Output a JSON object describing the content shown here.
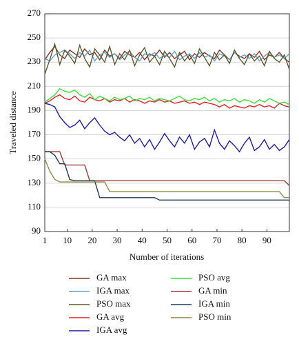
{
  "chart_data": {
    "type": "line",
    "x_label": "Number of iterations",
    "y_label": "Traveled distance",
    "x": [
      1,
      3,
      5,
      7,
      9,
      11,
      13,
      15,
      17,
      19,
      21,
      23,
      25,
      27,
      29,
      31,
      33,
      35,
      37,
      39,
      41,
      43,
      45,
      47,
      49,
      51,
      53,
      55,
      57,
      59,
      61,
      63,
      65,
      67,
      69,
      71,
      73,
      75,
      77,
      79,
      81,
      83,
      85,
      87,
      89,
      91,
      93,
      95,
      97,
      99
    ],
    "xlim": [
      1,
      99
    ],
    "xticks": [
      1,
      10,
      20,
      30,
      40,
      50,
      60,
      70,
      80,
      90
    ],
    "ylim": [
      90,
      270
    ],
    "yticks": [
      90,
      110,
      130,
      150,
      170,
      190,
      210,
      230,
      250,
      270
    ],
    "grid": true,
    "series": [
      {
        "name": "GA max",
        "color": "#8b2f1f",
        "values": [
          232,
          238,
          243,
          236,
          233,
          240,
          237,
          234,
          241,
          236,
          238,
          232,
          240,
          235,
          237,
          233,
          239,
          236,
          234,
          238,
          232,
          237,
          235,
          240,
          234,
          238,
          233,
          236,
          239,
          232,
          237,
          234,
          238,
          235,
          233,
          240,
          236,
          232,
          238,
          235,
          233,
          237,
          234,
          239,
          232,
          236,
          234,
          238,
          233,
          230
        ]
      },
      {
        "name": "IGA max",
        "color": "#5ea3cc",
        "values": [
          233,
          231,
          236,
          238,
          240,
          237,
          233,
          238,
          235,
          240,
          231,
          236,
          238,
          234,
          237,
          232,
          236,
          239,
          234,
          231,
          237,
          235,
          238,
          233,
          236,
          234,
          239,
          232,
          235,
          237,
          233,
          238,
          234,
          236,
          231,
          237,
          235,
          232,
          238,
          234,
          236,
          233,
          237,
          231,
          235,
          238,
          234,
          236,
          233,
          237
        ]
      },
      {
        "name": "PSO max",
        "color": "#5c5a2c",
        "values": [
          220,
          232,
          245,
          228,
          240,
          235,
          229,
          244,
          233,
          226,
          241,
          236,
          230,
          243,
          228,
          237,
          232,
          240,
          227,
          236,
          242,
          230,
          235,
          228,
          239,
          233,
          226,
          238,
          231,
          236,
          229,
          241,
          234,
          227,
          238,
          232,
          236,
          229,
          240,
          233,
          228,
          237,
          231,
          235,
          227,
          239,
          233,
          230,
          236,
          224
        ]
      },
      {
        "name": "GA avg",
        "color": "#e02424",
        "values": [
          196,
          198,
          201,
          203,
          200,
          199,
          202,
          198,
          197,
          201,
          199,
          198,
          200,
          197,
          199,
          198,
          200,
          197,
          199,
          198,
          196,
          198,
          197,
          199,
          197,
          198,
          196,
          197,
          198,
          196,
          197,
          195,
          197,
          196,
          195,
          193,
          195,
          192,
          194,
          193,
          192,
          194,
          193,
          195,
          193,
          194,
          192,
          196,
          194,
          193
        ]
      },
      {
        "name": "IGA avg",
        "color": "#1c1ca8",
        "values": [
          196,
          195,
          193,
          185,
          180,
          176,
          178,
          182,
          175,
          180,
          184,
          178,
          173,
          170,
          172,
          168,
          165,
          170,
          163,
          167,
          160,
          166,
          158,
          164,
          171,
          165,
          160,
          168,
          163,
          170,
          158,
          164,
          167,
          160,
          174,
          163,
          158,
          165,
          161,
          156,
          163,
          168,
          157,
          160,
          166,
          158,
          162,
          157,
          160,
          166
        ]
      },
      {
        "name": "PSO avg",
        "color": "#3ade3a",
        "values": [
          197,
          200,
          203,
          208,
          206,
          205,
          207,
          203,
          201,
          204,
          199,
          202,
          200,
          198,
          201,
          199,
          200,
          202,
          198,
          200,
          199,
          201,
          198,
          200,
          199,
          198,
          200,
          202,
          199,
          198,
          200,
          199,
          201,
          198,
          200,
          197,
          199,
          198,
          200,
          197,
          199,
          198,
          196,
          199,
          197,
          200,
          198,
          196,
          197,
          195
        ]
      },
      {
        "name": "GA min",
        "color": "#a3383a",
        "values": [
          156,
          156,
          156,
          156,
          145,
          145,
          145,
          145,
          145,
          132,
          132,
          132,
          132,
          132,
          132,
          132,
          132,
          132,
          132,
          132,
          132,
          132,
          132,
          132,
          132,
          132,
          132,
          132,
          132,
          132,
          132,
          132,
          132,
          132,
          132,
          132,
          132,
          132,
          132,
          132,
          132,
          132,
          132,
          132,
          132,
          132,
          132,
          132,
          132,
          128
        ]
      },
      {
        "name": "IGA min",
        "color": "#1d3a5c",
        "values": [
          156,
          156,
          153,
          146,
          146,
          133,
          132,
          132,
          132,
          132,
          132,
          118,
          118,
          118,
          118,
          118,
          118,
          118,
          118,
          118,
          118,
          118,
          118,
          116,
          116,
          116,
          116,
          116,
          116,
          116,
          116,
          116,
          116,
          116,
          116,
          116,
          116,
          116,
          116,
          116,
          116,
          116,
          116,
          116,
          116,
          116,
          116,
          116,
          116,
          116
        ]
      },
      {
        "name": "PSO min",
        "color": "#8c8a44",
        "values": [
          150,
          140,
          133,
          131,
          131,
          131,
          131,
          131,
          131,
          131,
          131,
          131,
          131,
          123,
          123,
          123,
          123,
          123,
          123,
          123,
          123,
          123,
          123,
          123,
          123,
          123,
          123,
          123,
          123,
          123,
          123,
          123,
          123,
          123,
          123,
          123,
          123,
          123,
          123,
          123,
          123,
          123,
          123,
          123,
          123,
          123,
          123,
          123,
          118,
          118
        ]
      }
    ]
  }
}
